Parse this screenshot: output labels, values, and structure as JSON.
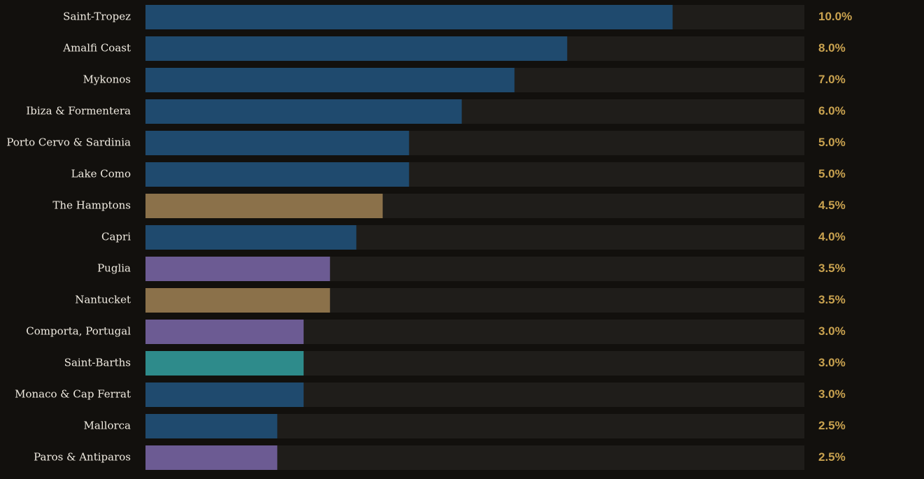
{
  "chart_data": {
    "type": "bar",
    "orientation": "horizontal",
    "xlim": [
      0,
      12.5
    ],
    "grid": false,
    "legend": "none",
    "track_color": "#1f1d1a",
    "value_color": "#c9a24f",
    "label_color": "#f1ece2",
    "background": "#12100d",
    "categories": [
      "Saint-Tropez",
      "Amalfi Coast",
      "Mykonos",
      "Ibiza & Formentera",
      "Porto Cervo & Sardinia",
      "Lake Como",
      "The Hamptons",
      "Capri",
      "Puglia",
      "Nantucket",
      "Comporta, Portugal",
      "Saint-Barths",
      "Monaco & Cap Ferrat",
      "Mallorca",
      "Paros & Antiparos"
    ],
    "values": [
      10.0,
      8.0,
      7.0,
      6.0,
      5.0,
      5.0,
      4.5,
      4.0,
      3.5,
      3.5,
      3.0,
      3.0,
      3.0,
      2.5,
      2.5
    ],
    "value_labels": [
      "10.0%",
      "8.0%",
      "7.0%",
      "6.0%",
      "5.0%",
      "5.0%",
      "4.5%",
      "4.0%",
      "3.5%",
      "3.5%",
      "3.0%",
      "3.0%",
      "3.0%",
      "2.5%",
      "2.5%"
    ],
    "bar_colors": [
      "#1f4a6e",
      "#1f4a6e",
      "#1f4a6e",
      "#1f4a6e",
      "#1f4a6e",
      "#1f4a6e",
      "#8b714a",
      "#1f4a6e",
      "#6c5b93",
      "#8b714a",
      "#6c5b93",
      "#2e8b8b",
      "#1f4a6e",
      "#1f4a6e",
      "#6c5b93"
    ]
  }
}
